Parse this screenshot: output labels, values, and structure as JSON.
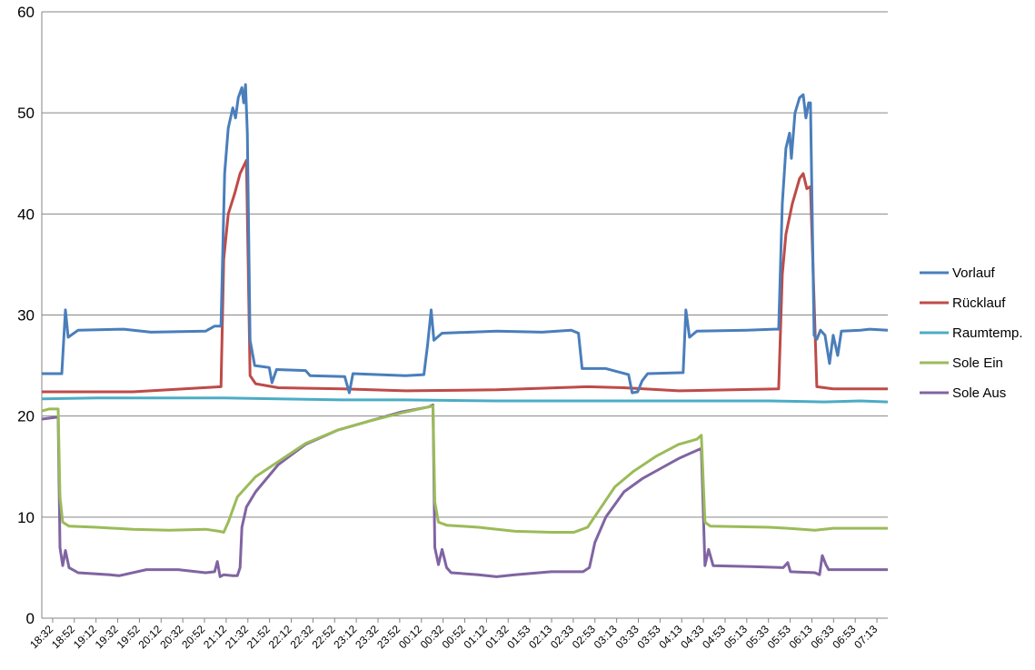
{
  "chart_data": {
    "type": "line",
    "title": "",
    "xlabel": "",
    "ylabel": "",
    "ylim": [
      0,
      60
    ],
    "yticks": [
      0,
      10,
      20,
      30,
      40,
      50,
      60
    ],
    "grid": true,
    "legend_position": "right",
    "x_tick_labels": [
      "18:32",
      "18:52",
      "19:12",
      "19:32",
      "19:52",
      "20:12",
      "20:32",
      "20:52",
      "21:12",
      "21:32",
      "21:52",
      "22:12",
      "22:32",
      "22:52",
      "23:12",
      "23:32",
      "23:52",
      "00:12",
      "00:32",
      "00:52",
      "01:12",
      "01:32",
      "01:53",
      "02:13",
      "02:33",
      "02:53",
      "03:13",
      "03:33",
      "03:53",
      "04:13",
      "04:33",
      "04:53",
      "05:13",
      "05:33",
      "05:53",
      "06:13",
      "06:33",
      "06:53",
      "07:13"
    ],
    "x_range_minutes": [
      0,
      765
    ],
    "series": [
      {
        "name": "Vorlauf",
        "color": "#4a7ebb",
        "points": [
          [
            0,
            24.2
          ],
          [
            22,
            24.2
          ],
          [
            26,
            30.5
          ],
          [
            29,
            27.8
          ],
          [
            40,
            28.5
          ],
          [
            90,
            28.6
          ],
          [
            120,
            28.3
          ],
          [
            180,
            28.4
          ],
          [
            190,
            28.9
          ],
          [
            197,
            28.9
          ],
          [
            201,
            44
          ],
          [
            205,
            48.5
          ],
          [
            210,
            50.5
          ],
          [
            213,
            49.5
          ],
          [
            216,
            51.5
          ],
          [
            220,
            52.5
          ],
          [
            222,
            51
          ],
          [
            224,
            52.8
          ],
          [
            226,
            48
          ],
          [
            229,
            27.5
          ],
          [
            234,
            25
          ],
          [
            250,
            24.8
          ],
          [
            253,
            23.3
          ],
          [
            258,
            24.6
          ],
          [
            290,
            24.5
          ],
          [
            295,
            24
          ],
          [
            333,
            23.9
          ],
          [
            338,
            22.3
          ],
          [
            342,
            24.2
          ],
          [
            400,
            24
          ],
          [
            420,
            24.1
          ],
          [
            424,
            27
          ],
          [
            428,
            30.5
          ],
          [
            431,
            27.5
          ],
          [
            440,
            28.2
          ],
          [
            500,
            28.4
          ],
          [
            550,
            28.3
          ],
          [
            582,
            28.5
          ],
          [
            590,
            28.2
          ],
          [
            594,
            24.7
          ],
          [
            620,
            24.7
          ],
          [
            645,
            24.1
          ],
          [
            649,
            22.3
          ],
          [
            655,
            22.4
          ],
          [
            660,
            23.5
          ],
          [
            666,
            24.2
          ],
          [
            705,
            24.3
          ],
          [
            708,
            30.5
          ],
          [
            712,
            27.8
          ],
          [
            720,
            28.4
          ],
          [
            775,
            28.5
          ],
          [
            805,
            28.6
          ],
          [
            810,
            28.6
          ],
          [
            814,
            41
          ],
          [
            818,
            46.5
          ],
          [
            822,
            48
          ],
          [
            824,
            45.5
          ],
          [
            828,
            50
          ],
          [
            833,
            51.5
          ],
          [
            837,
            51.8
          ],
          [
            840,
            49.5
          ],
          [
            843,
            51
          ],
          [
            845,
            51
          ],
          [
            849,
            28
          ],
          [
            852,
            27.6
          ],
          [
            856,
            28.5
          ],
          [
            861,
            28
          ],
          [
            866,
            25.2
          ],
          [
            870,
            28
          ],
          [
            875,
            26
          ],
          [
            879,
            28.4
          ],
          [
            900,
            28.5
          ],
          [
            910,
            28.6
          ],
          [
            930,
            28.5
          ]
        ]
      },
      {
        "name": "Rücklauf",
        "color": "#be4b48",
        "points": [
          [
            0,
            22.4
          ],
          [
            100,
            22.4
          ],
          [
            197,
            22.9
          ],
          [
            200,
            35.5
          ],
          [
            205,
            40
          ],
          [
            212,
            42
          ],
          [
            218,
            44
          ],
          [
            225,
            45.3
          ],
          [
            229,
            24
          ],
          [
            235,
            23.2
          ],
          [
            260,
            22.8
          ],
          [
            330,
            22.7
          ],
          [
            400,
            22.5
          ],
          [
            500,
            22.6
          ],
          [
            600,
            22.9
          ],
          [
            640,
            22.8
          ],
          [
            700,
            22.5
          ],
          [
            810,
            22.7
          ],
          [
            814,
            34
          ],
          [
            818,
            38
          ],
          [
            825,
            41
          ],
          [
            833,
            43.5
          ],
          [
            837,
            44
          ],
          [
            841,
            42.5
          ],
          [
            845,
            42.7
          ],
          [
            852,
            22.9
          ],
          [
            870,
            22.7
          ],
          [
            930,
            22.7
          ]
        ]
      },
      {
        "name": "Raumtemp.",
        "color": "#4bacc6",
        "points": [
          [
            0,
            21.7
          ],
          [
            60,
            21.8
          ],
          [
            120,
            21.8
          ],
          [
            200,
            21.8
          ],
          [
            260,
            21.7
          ],
          [
            330,
            21.6
          ],
          [
            400,
            21.6
          ],
          [
            500,
            21.5
          ],
          [
            600,
            21.5
          ],
          [
            700,
            21.5
          ],
          [
            800,
            21.5
          ],
          [
            860,
            21.4
          ],
          [
            900,
            21.5
          ],
          [
            930,
            21.4
          ]
        ]
      },
      {
        "name": "Sole Ein",
        "color": "#9bbb59",
        "points": [
          [
            0,
            20.5
          ],
          [
            8,
            20.7
          ],
          [
            18,
            20.7
          ],
          [
            20,
            12
          ],
          [
            23,
            9.5
          ],
          [
            30,
            9.1
          ],
          [
            60,
            9
          ],
          [
            100,
            8.8
          ],
          [
            140,
            8.7
          ],
          [
            180,
            8.8
          ],
          [
            195,
            8.6
          ],
          [
            200,
            8.5
          ],
          [
            205,
            9.5
          ],
          [
            215,
            12
          ],
          [
            235,
            14
          ],
          [
            260,
            15.5
          ],
          [
            290,
            17.3
          ],
          [
            325,
            18.6
          ],
          [
            360,
            19.5
          ],
          [
            395,
            20.3
          ],
          [
            425,
            20.9
          ],
          [
            430,
            21
          ],
          [
            432,
            11.5
          ],
          [
            436,
            9.5
          ],
          [
            445,
            9.2
          ],
          [
            480,
            9
          ],
          [
            520,
            8.6
          ],
          [
            560,
            8.5
          ],
          [
            585,
            8.5
          ],
          [
            600,
            9
          ],
          [
            615,
            11
          ],
          [
            630,
            13
          ],
          [
            650,
            14.5
          ],
          [
            675,
            16
          ],
          [
            700,
            17.2
          ],
          [
            720,
            17.7
          ],
          [
            725,
            18.1
          ],
          [
            729,
            9.5
          ],
          [
            735,
            9.1
          ],
          [
            800,
            9
          ],
          [
            820,
            8.9
          ],
          [
            850,
            8.7
          ],
          [
            870,
            8.9
          ],
          [
            930,
            8.9
          ]
        ]
      },
      {
        "name": "Sole Aus",
        "color": "#8064a2",
        "points": [
          [
            0,
            19.7
          ],
          [
            18,
            19.9
          ],
          [
            20,
            7
          ],
          [
            23,
            5.2
          ],
          [
            26,
            6.7
          ],
          [
            30,
            5
          ],
          [
            40,
            4.5
          ],
          [
            75,
            4.3
          ],
          [
            85,
            4.2
          ],
          [
            115,
            4.8
          ],
          [
            150,
            4.8
          ],
          [
            180,
            4.5
          ],
          [
            190,
            4.6
          ],
          [
            193,
            5.6
          ],
          [
            196,
            4.1
          ],
          [
            200,
            4.3
          ],
          [
            210,
            4.2
          ],
          [
            215,
            4.2
          ],
          [
            218,
            5
          ],
          [
            220,
            9
          ],
          [
            225,
            11
          ],
          [
            235,
            12.5
          ],
          [
            260,
            15.2
          ],
          [
            290,
            17.2
          ],
          [
            325,
            18.6
          ],
          [
            360,
            19.5
          ],
          [
            395,
            20.4
          ],
          [
            425,
            20.9
          ],
          [
            430,
            21.1
          ],
          [
            432,
            7
          ],
          [
            436,
            5.3
          ],
          [
            440,
            6.8
          ],
          [
            445,
            5
          ],
          [
            450,
            4.5
          ],
          [
            480,
            4.3
          ],
          [
            500,
            4.1
          ],
          [
            520,
            4.3
          ],
          [
            560,
            4.6
          ],
          [
            595,
            4.6
          ],
          [
            602,
            5
          ],
          [
            608,
            7.5
          ],
          [
            620,
            10
          ],
          [
            640,
            12.5
          ],
          [
            660,
            13.8
          ],
          [
            680,
            14.8
          ],
          [
            700,
            15.8
          ],
          [
            725,
            16.8
          ],
          [
            729,
            5.2
          ],
          [
            733,
            6.8
          ],
          [
            738,
            5.2
          ],
          [
            780,
            5.1
          ],
          [
            815,
            5
          ],
          [
            820,
            5.5
          ],
          [
            823,
            4.6
          ],
          [
            850,
            4.5
          ],
          [
            855,
            4.3
          ],
          [
            858,
            6.2
          ],
          [
            862,
            5.3
          ],
          [
            865,
            4.8
          ],
          [
            900,
            4.8
          ],
          [
            930,
            4.8
          ]
        ]
      }
    ]
  }
}
